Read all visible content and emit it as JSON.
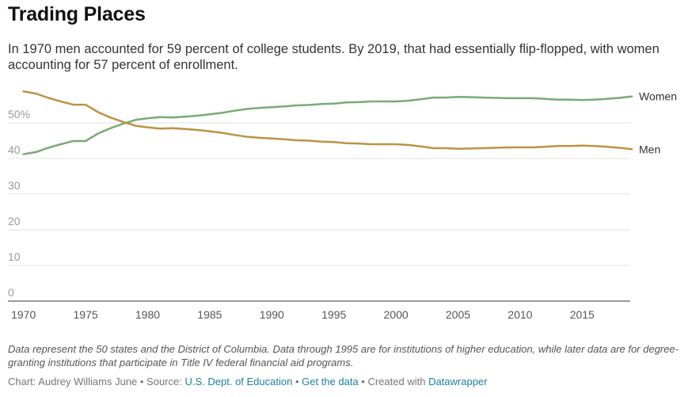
{
  "header": {
    "title": "Trading Places",
    "subtitle": "In 1970 men accounted for 59 percent of college students. By 2019, that had essentially flip-flopped, with women accounting for 57 percent of enrollment."
  },
  "chart_data": {
    "type": "line",
    "xlim": [
      1969,
      2019
    ],
    "ylim": [
      0,
      60
    ],
    "x_ticks": [
      1970,
      1975,
      1980,
      1985,
      1990,
      1995,
      2000,
      2005,
      2010,
      2015
    ],
    "y_ticks": [
      0,
      10,
      20,
      30,
      40,
      50
    ],
    "y_tick_labels": [
      "0",
      "10",
      "20",
      "30",
      "40",
      "50%"
    ],
    "grid": true,
    "legend": "end-of-line labels",
    "x": [
      1970,
      1971,
      1972,
      1973,
      1974,
      1975,
      1976,
      1977,
      1978,
      1979,
      1980,
      1981,
      1982,
      1983,
      1984,
      1985,
      1986,
      1987,
      1988,
      1989,
      1990,
      1991,
      1992,
      1993,
      1994,
      1995,
      1996,
      1997,
      1998,
      1999,
      2000,
      2001,
      2002,
      2003,
      2004,
      2005,
      2006,
      2007,
      2008,
      2009,
      2010,
      2011,
      2012,
      2013,
      2014,
      2015,
      2016,
      2017,
      2018,
      2019
    ],
    "series": [
      {
        "name": "Women",
        "color": "#78ab74",
        "values": [
          41.2,
          41.8,
          43.0,
          44.0,
          44.9,
          44.9,
          47.0,
          48.5,
          49.7,
          50.8,
          51.3,
          51.6,
          51.5,
          51.7,
          52.0,
          52.4,
          52.8,
          53.4,
          53.9,
          54.2,
          54.4,
          54.6,
          54.9,
          55.0,
          55.3,
          55.4,
          55.7,
          55.8,
          56.0,
          56.0,
          56.0,
          56.2,
          56.6,
          57.1,
          57.1,
          57.3,
          57.2,
          57.1,
          57.0,
          56.9,
          56.9,
          56.9,
          56.7,
          56.5,
          56.5,
          56.4,
          56.5,
          56.7,
          57.0,
          57.4
        ]
      },
      {
        "name": "Men",
        "color": "#bc9343",
        "values": [
          58.8,
          58.2,
          57.0,
          56.0,
          55.1,
          55.1,
          53.0,
          51.5,
          50.3,
          49.2,
          48.7,
          48.4,
          48.5,
          48.3,
          48.0,
          47.6,
          47.2,
          46.6,
          46.1,
          45.8,
          45.6,
          45.4,
          45.1,
          45.0,
          44.7,
          44.6,
          44.3,
          44.2,
          44.0,
          44.0,
          44.0,
          43.8,
          43.4,
          42.9,
          42.9,
          42.7,
          42.8,
          42.9,
          43.0,
          43.1,
          43.1,
          43.1,
          43.3,
          43.5,
          43.5,
          43.6,
          43.5,
          43.3,
          43.0,
          42.6
        ]
      }
    ]
  },
  "footer": {
    "notes": "Data represent the 50 states and the District of Columbia. Data through 1995 are for institutions of higher education, while later data are for degree-granting institutions that participate in Title IV federal financial aid programs.",
    "credit_prefix": "Chart: Audrey Williams June • Source: ",
    "source_link": "U.S. Dept. of Education",
    "sep1": " • ",
    "get_data_link": "Get the data",
    "sep2": " • Created with ",
    "tool_link": "Datawrapper"
  }
}
